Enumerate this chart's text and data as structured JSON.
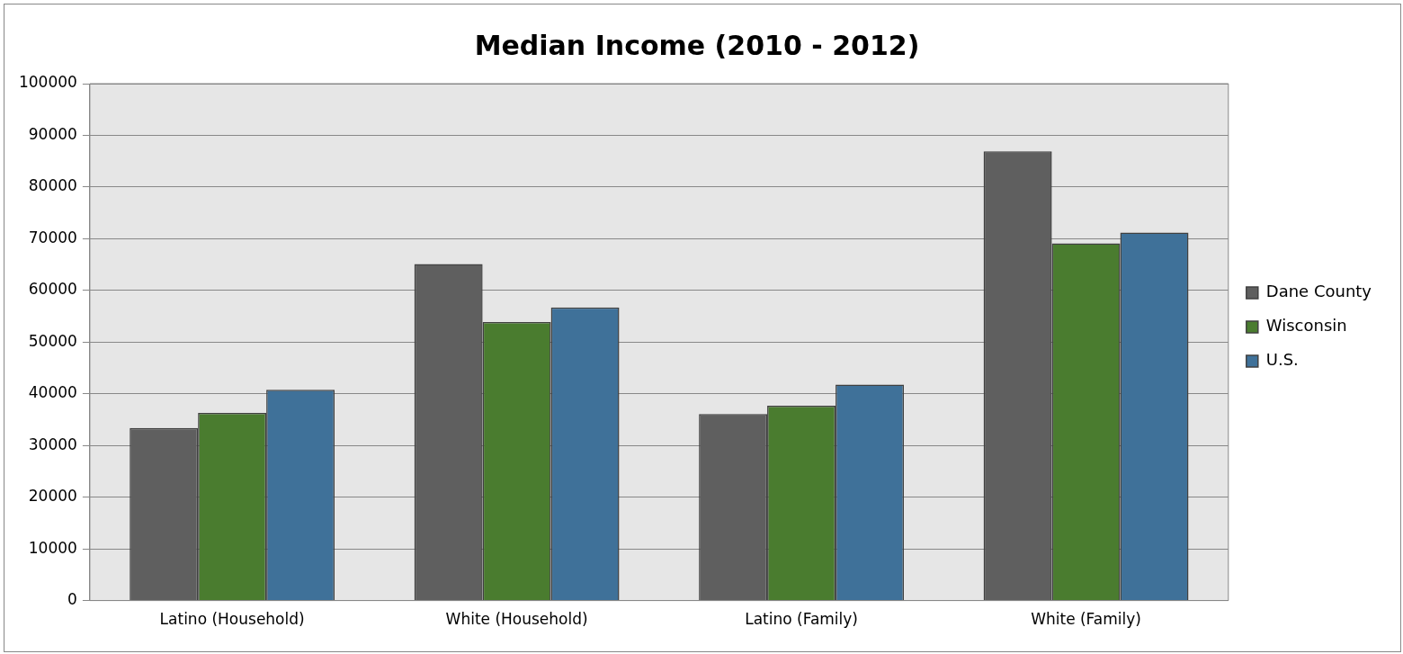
{
  "chart_data": {
    "type": "bar",
    "title": "Median Income (2010 - 2012)",
    "categories": [
      "Latino (Household)",
      "White (Household)",
      "Latino (Family)",
      "White (Family)"
    ],
    "series": [
      {
        "name": "Dane County",
        "color": "#5f5f5f",
        "values": [
          33400,
          65100,
          36100,
          86900
        ]
      },
      {
        "name": "Wisconsin",
        "color": "#4a7c2f",
        "values": [
          36300,
          53900,
          37700,
          69100
        ]
      },
      {
        "name": "U.S.",
        "color": "#3f7199",
        "values": [
          40800,
          56700,
          41800,
          71200
        ]
      }
    ],
    "ylim": [
      0,
      100000
    ],
    "yticks": [
      0,
      10000,
      20000,
      30000,
      40000,
      50000,
      60000,
      70000,
      80000,
      90000,
      100000
    ],
    "grid": "y",
    "legend": "right"
  }
}
